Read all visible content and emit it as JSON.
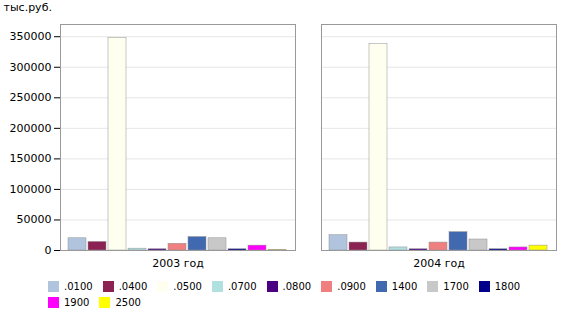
{
  "chart_data": {
    "type": "bar",
    "categories": [
      "2003 год",
      "2004 год"
    ],
    "series": [
      {
        "name": ".0100",
        "color": "#b0c4de",
        "values": [
          20000,
          25000
        ]
      },
      {
        "name": ".0400",
        "color": "#8b2252",
        "values": [
          14000,
          13000
        ]
      },
      {
        "name": ".0500",
        "color": "#fffff0",
        "values": [
          348000,
          338000
        ]
      },
      {
        "name": ".0700",
        "color": "#b0e0e0",
        "values": [
          3000,
          5000
        ]
      },
      {
        "name": ".0800",
        "color": "#4b0082",
        "values": [
          2000,
          2000
        ]
      },
      {
        "name": ".0900",
        "color": "#f08080",
        "values": [
          11000,
          13000
        ]
      },
      {
        "name": "1400",
        "color": "#4169b0",
        "values": [
          22000,
          30000
        ]
      },
      {
        "name": "1700",
        "color": "#c8c8c8",
        "values": [
          20000,
          18000
        ]
      },
      {
        "name": "1800",
        "color": "#00008b",
        "values": [
          2000,
          2000
        ]
      },
      {
        "name": "1900",
        "color": "#ff00ff",
        "values": [
          8000,
          5000
        ]
      },
      {
        "name": "2500",
        "color": "#ffff00",
        "values": [
          1000,
          8000
        ]
      }
    ],
    "ylabel": "тыс.руб.",
    "ylim": [
      0,
      370000
    ],
    "yticks": [
      0,
      50000,
      100000,
      150000,
      200000,
      250000,
      300000,
      350000
    ],
    "grid": true,
    "legend": "bottom"
  }
}
